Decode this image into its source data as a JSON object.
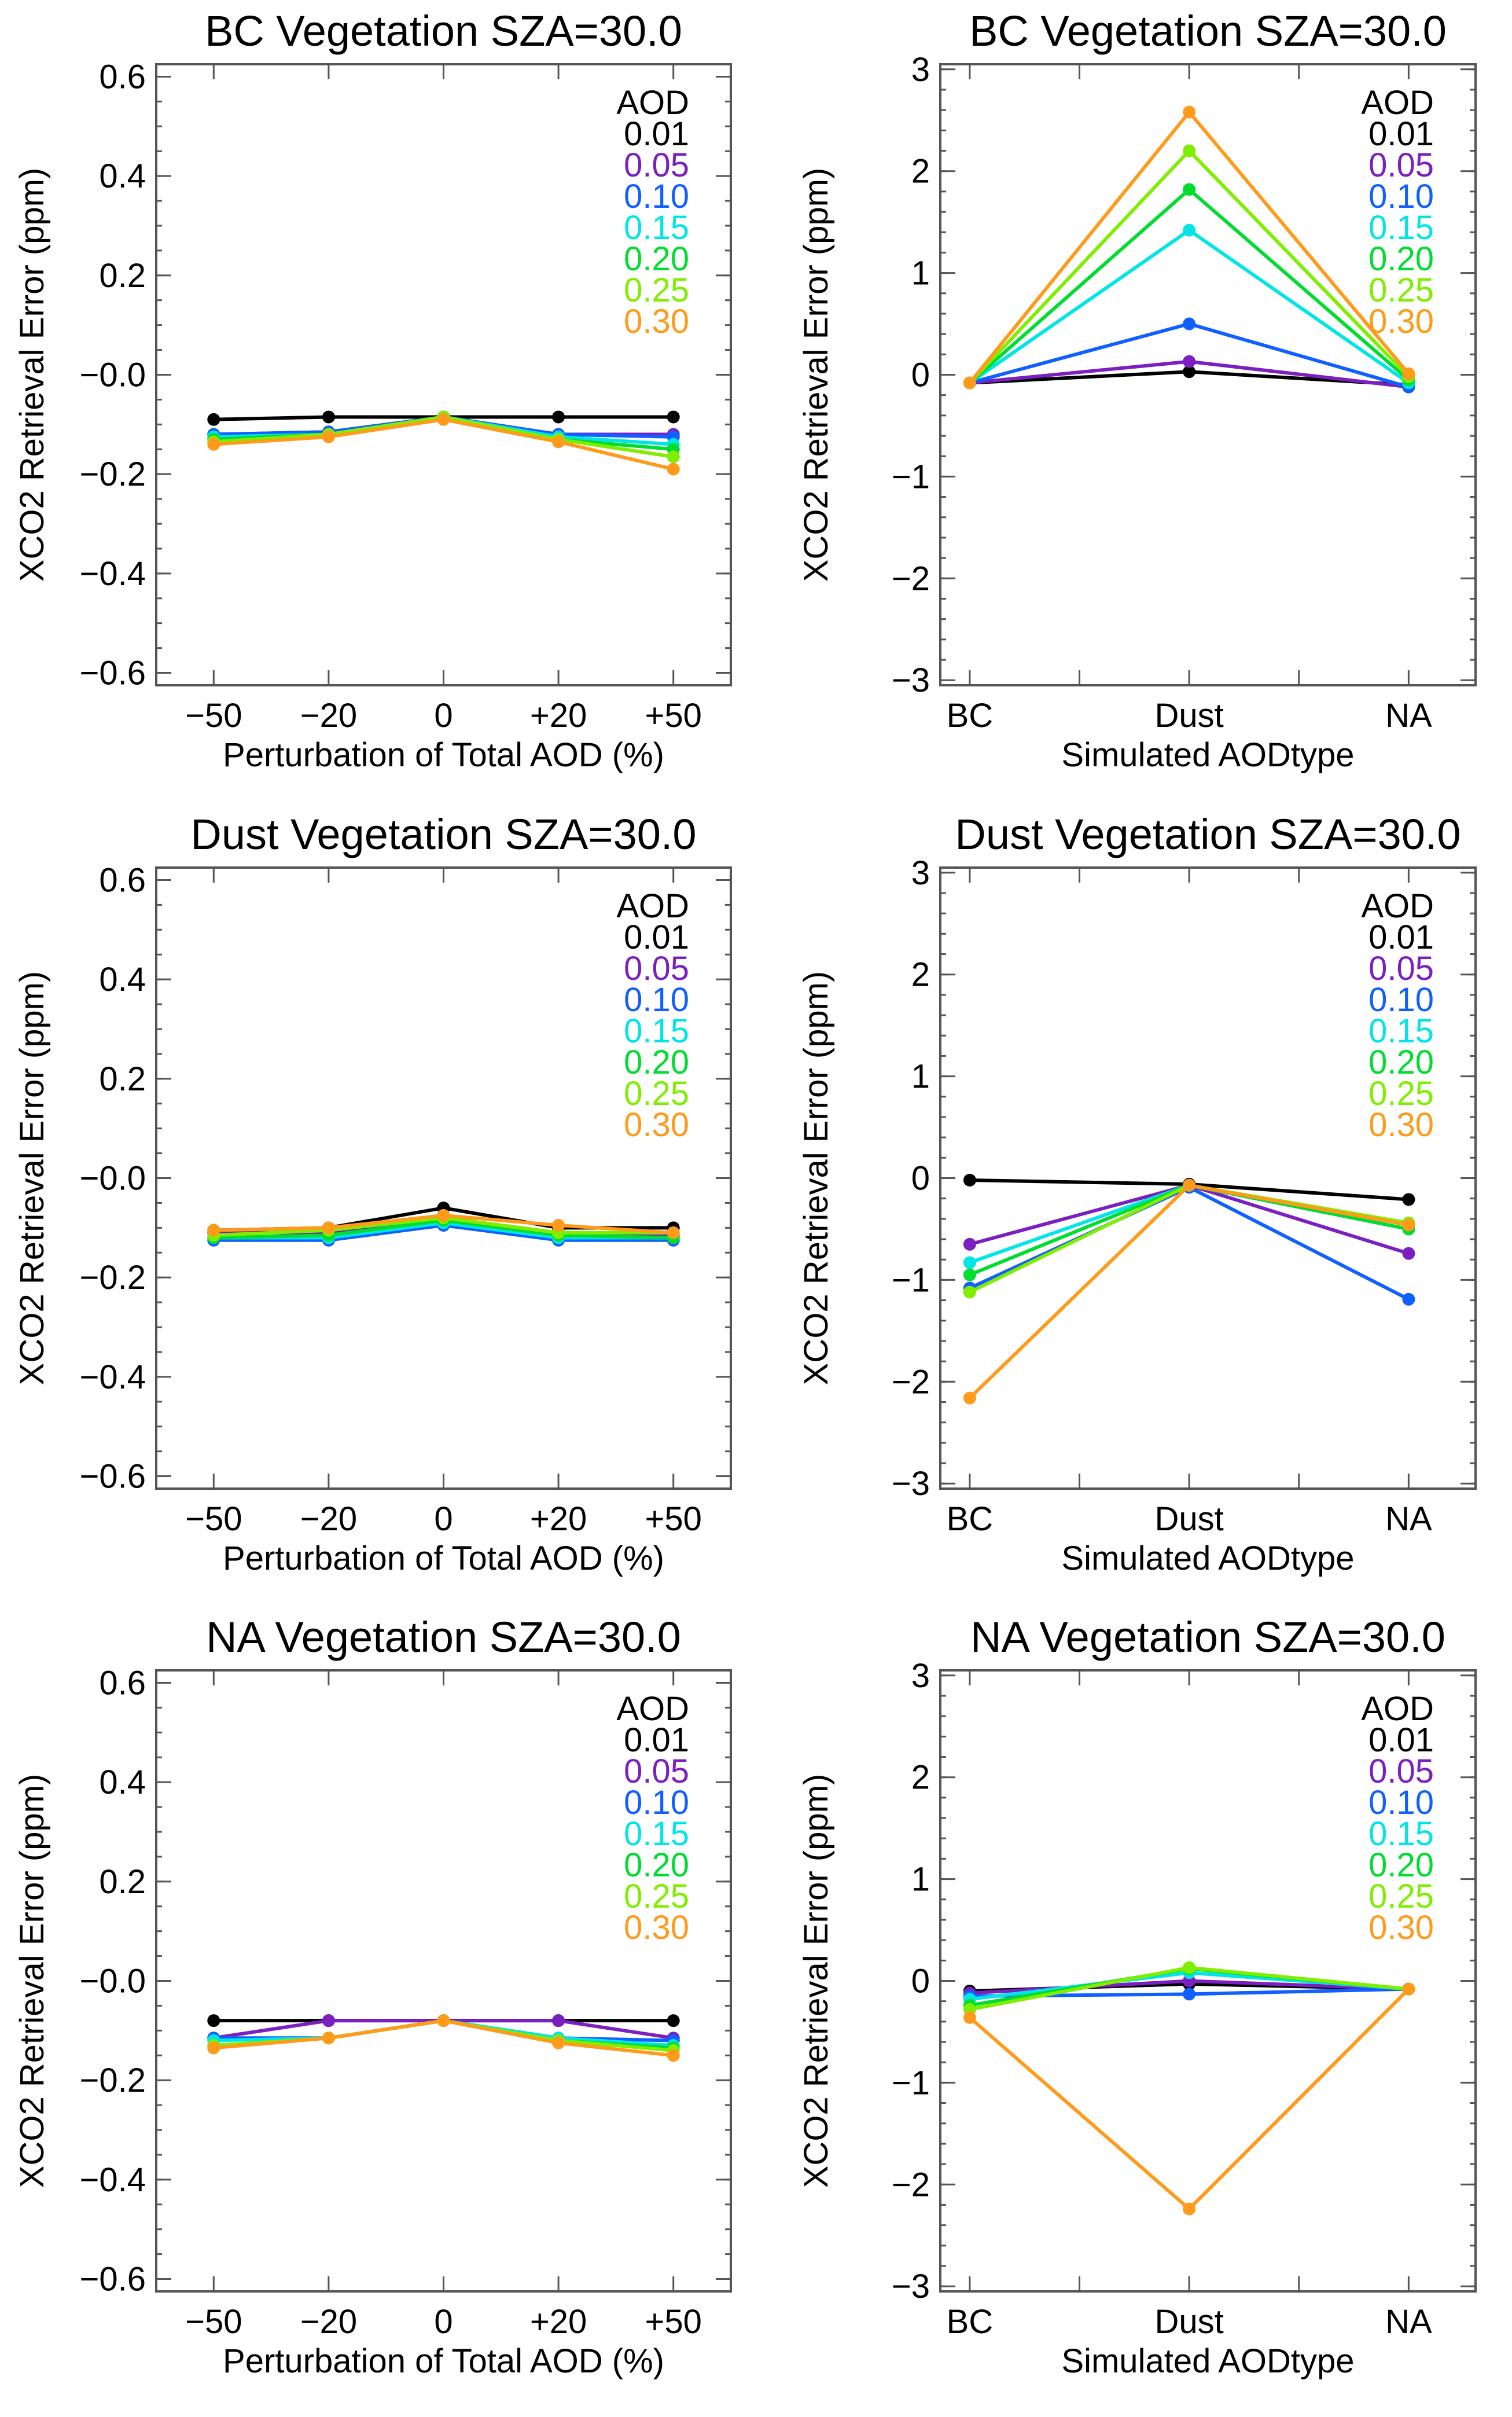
{
  "chart_data": {
    "type": "line",
    "legend_title": "AOD",
    "legend_placement": "top-right",
    "series_names": [
      "0.01",
      "0.05",
      "0.10",
      "0.15",
      "0.20",
      "0.25",
      "0.30"
    ],
    "series_colors": [
      "#000000",
      "#7b1fc0",
      "#1060ff",
      "#00e5e5",
      "#00dd30",
      "#80ee00",
      "#ff9a1a"
    ],
    "panels": [
      {
        "title": "BC Vegetation SZA=30.0",
        "kind": "perturb",
        "xlabel": "Perturbation of Total AOD (%)",
        "ylabel": "XCO2 Retrieval Error (ppm)",
        "categories": [
          "−50",
          "−20",
          "0",
          "+20",
          "+50"
        ],
        "ylim": [
          -0.625,
          0.625
        ],
        "yticks": [
          "0.6",
          "0.4",
          "0.2",
          "−0.0",
          "−0.2",
          "−0.4",
          "−0.6"
        ],
        "ytick_values": [
          0.6,
          0.4,
          0.2,
          0,
          -0.2,
          -0.4,
          -0.6
        ],
        "series": [
          [
            -0.09,
            -0.085,
            -0.085,
            -0.085,
            -0.085
          ],
          [
            -0.12,
            -0.115,
            -0.085,
            -0.12,
            -0.12
          ],
          [
            -0.12,
            -0.115,
            -0.085,
            -0.12,
            -0.125
          ],
          [
            -0.125,
            -0.12,
            -0.085,
            -0.125,
            -0.14
          ],
          [
            -0.13,
            -0.12,
            -0.085,
            -0.13,
            -0.15
          ],
          [
            -0.135,
            -0.12,
            -0.085,
            -0.13,
            -0.165
          ],
          [
            -0.14,
            -0.125,
            -0.09,
            -0.135,
            -0.19
          ]
        ]
      },
      {
        "title": "BC Vegetation SZA=30.0",
        "kind": "type",
        "xlabel": "Simulated AODtype",
        "ylabel": "XCO2 Retrieval Error (ppm)",
        "categories": [
          "BC",
          "Dust",
          "NA"
        ],
        "ylim": [
          -3.05,
          3.05
        ],
        "yticks": [
          "3",
          "2",
          "1",
          "0",
          "−1",
          "−2",
          "−3"
        ],
        "ytick_values": [
          3,
          2,
          1,
          0,
          -1,
          -2,
          -3
        ],
        "series": [
          [
            -0.08,
            0.03,
            -0.1
          ],
          [
            -0.08,
            0.13,
            -0.12
          ],
          [
            -0.08,
            0.5,
            -0.12
          ],
          [
            -0.08,
            1.42,
            -0.08
          ],
          [
            -0.08,
            1.82,
            -0.05
          ],
          [
            -0.08,
            2.2,
            -0.02
          ],
          [
            -0.08,
            2.58,
            0.01
          ]
        ]
      },
      {
        "title": "Dust Vegetation SZA=30.0",
        "kind": "perturb",
        "xlabel": "Perturbation of Total AOD (%)",
        "ylabel": "XCO2 Retrieval Error (ppm)",
        "categories": [
          "−50",
          "−20",
          "0",
          "+20",
          "+50"
        ],
        "ylim": [
          -0.625,
          0.625
        ],
        "yticks": [
          "0.6",
          "0.4",
          "0.2",
          "−0.0",
          "−0.2",
          "−0.4",
          "−0.6"
        ],
        "ytick_values": [
          0.6,
          0.4,
          0.2,
          0,
          -0.2,
          -0.4,
          -0.6
        ],
        "series": [
          [
            -0.105,
            -0.1,
            -0.06,
            -0.1,
            -0.1
          ],
          [
            -0.11,
            -0.11,
            -0.08,
            -0.11,
            -0.115
          ],
          [
            -0.125,
            -0.125,
            -0.095,
            -0.125,
            -0.125
          ],
          [
            -0.12,
            -0.12,
            -0.09,
            -0.12,
            -0.12
          ],
          [
            -0.12,
            -0.115,
            -0.085,
            -0.115,
            -0.12
          ],
          [
            -0.115,
            -0.105,
            -0.08,
            -0.11,
            -0.11
          ],
          [
            -0.105,
            -0.1,
            -0.075,
            -0.095,
            -0.11
          ]
        ]
      },
      {
        "title": "Dust Vegetation SZA=30.0",
        "kind": "type",
        "xlabel": "Simulated AODtype",
        "ylabel": "XCO2 Retrieval Error (ppm)",
        "categories": [
          "BC",
          "Dust",
          "NA"
        ],
        "ylim": [
          -3.05,
          3.05
        ],
        "yticks": [
          "3",
          "2",
          "1",
          "0",
          "−1",
          "−2",
          "−3"
        ],
        "ytick_values": [
          3,
          2,
          1,
          0,
          -1,
          -2,
          -3
        ],
        "series": [
          [
            -0.02,
            -0.06,
            -0.21
          ],
          [
            -0.65,
            -0.07,
            -0.74
          ],
          [
            -1.08,
            -0.09,
            -1.19
          ],
          [
            -0.83,
            -0.07,
            -0.5
          ],
          [
            -0.95,
            -0.07,
            -0.5
          ],
          [
            -1.12,
            -0.07,
            -0.44
          ],
          [
            -2.16,
            -0.07,
            -0.46
          ]
        ]
      },
      {
        "title": "NA Vegetation SZA=30.0",
        "kind": "perturb",
        "xlabel": "Perturbation of Total AOD (%)",
        "ylabel": "XCO2 Retrieval Error (ppm)",
        "categories": [
          "−50",
          "−20",
          "0",
          "+20",
          "+50"
        ],
        "ylim": [
          -0.625,
          0.625
        ],
        "yticks": [
          "0.6",
          "0.4",
          "0.2",
          "−0.0",
          "−0.2",
          "−0.4",
          "−0.6"
        ],
        "ytick_values": [
          0.6,
          0.4,
          0.2,
          0,
          -0.2,
          -0.4,
          -0.6
        ],
        "series": [
          [
            -0.08,
            -0.08,
            -0.08,
            -0.08,
            -0.08
          ],
          [
            -0.115,
            -0.08,
            -0.08,
            -0.08,
            -0.115
          ],
          [
            -0.115,
            -0.115,
            -0.08,
            -0.115,
            -0.12
          ],
          [
            -0.12,
            -0.115,
            -0.08,
            -0.115,
            -0.13
          ],
          [
            -0.13,
            -0.115,
            -0.08,
            -0.12,
            -0.135
          ],
          [
            -0.13,
            -0.115,
            -0.08,
            -0.12,
            -0.14
          ],
          [
            -0.135,
            -0.115,
            -0.08,
            -0.125,
            -0.15
          ]
        ]
      },
      {
        "title": "NA Vegetation SZA=30.0",
        "kind": "type",
        "xlabel": "Simulated AODtype",
        "ylabel": "XCO2 Retrieval Error (ppm)",
        "categories": [
          "BC",
          "Dust",
          "NA"
        ],
        "ylim": [
          -3.05,
          3.05
        ],
        "yticks": [
          "3",
          "2",
          "1",
          "0",
          "−1",
          "−2",
          "−3"
        ],
        "ytick_values": [
          3,
          2,
          1,
          0,
          -1,
          -2,
          -3
        ],
        "series": [
          [
            -0.1,
            -0.03,
            -0.08
          ],
          [
            -0.12,
            0.0,
            -0.08
          ],
          [
            -0.15,
            -0.13,
            -0.08
          ],
          [
            -0.18,
            0.08,
            -0.08
          ],
          [
            -0.24,
            0.12,
            -0.08
          ],
          [
            -0.28,
            0.13,
            -0.08
          ],
          [
            -0.36,
            -2.24,
            -0.08
          ]
        ]
      }
    ]
  }
}
